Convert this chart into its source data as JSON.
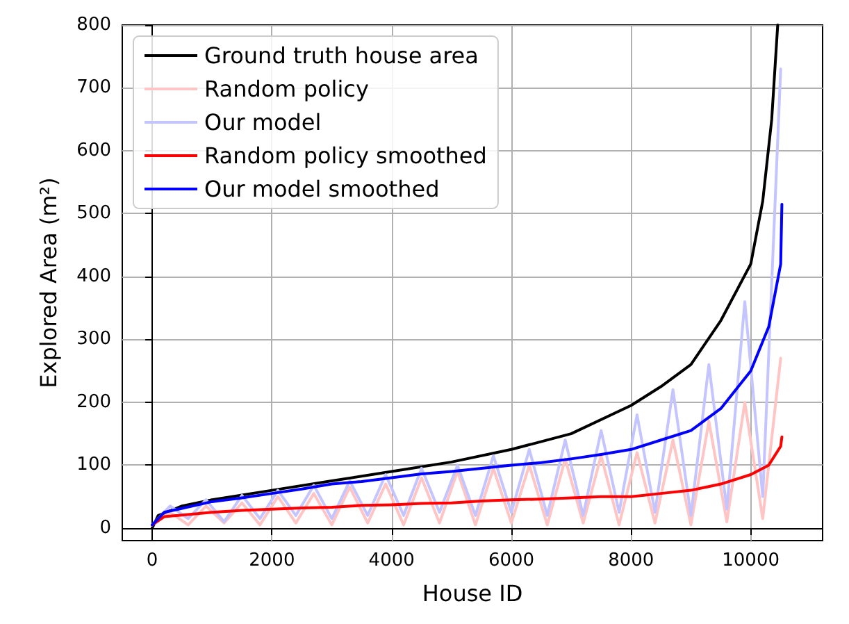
{
  "chart_data": {
    "type": "line",
    "xlabel": "House ID",
    "ylabel": "Explored Area (m²)",
    "xlim": [
      -500,
      11200
    ],
    "ylim": [
      -20,
      800
    ],
    "xticks": [
      0,
      2000,
      4000,
      6000,
      8000,
      10000
    ],
    "yticks": [
      0,
      100,
      200,
      300,
      400,
      500,
      600,
      700,
      800
    ],
    "grid": true,
    "legend": "top left",
    "marker": "none",
    "line_style": "solid",
    "series": [
      {
        "name": "Ground truth house area",
        "color": "#000000",
        "x": [
          0,
          100,
          500,
          1000,
          2000,
          3000,
          4000,
          5000,
          6000,
          7000,
          8000,
          8500,
          9000,
          9500,
          10000,
          10200,
          10350,
          10450
        ],
        "values": [
          0,
          20,
          35,
          45,
          60,
          75,
          90,
          105,
          125,
          150,
          195,
          225,
          260,
          330,
          420,
          520,
          650,
          800
        ]
      },
      {
        "name": "Random policy",
        "color": "#ffc4c4",
        "x": [
          0,
          300,
          600,
          900,
          1200,
          1500,
          1800,
          2100,
          2400,
          2700,
          3000,
          3300,
          3600,
          3900,
          4200,
          4500,
          4800,
          5100,
          5400,
          5700,
          6000,
          6300,
          6600,
          6900,
          7200,
          7500,
          7800,
          8100,
          8400,
          8700,
          9000,
          9300,
          9600,
          9900,
          10200,
          10500
        ],
        "values": [
          5,
          25,
          5,
          35,
          8,
          40,
          5,
          50,
          8,
          55,
          5,
          65,
          8,
          70,
          5,
          80,
          8,
          90,
          5,
          95,
          8,
          100,
          5,
          110,
          8,
          115,
          5,
          120,
          8,
          140,
          5,
          170,
          10,
          200,
          15,
          270
        ]
      },
      {
        "name": "Our model",
        "color": "#c4c4ff",
        "x": [
          0,
          300,
          600,
          900,
          1200,
          1500,
          1800,
          2100,
          2400,
          2700,
          3000,
          3300,
          3600,
          3900,
          4200,
          4500,
          4800,
          5100,
          5400,
          5700,
          6000,
          6300,
          6600,
          6900,
          7200,
          7500,
          7800,
          8100,
          8400,
          8700,
          9000,
          9300,
          9600,
          9900,
          10200,
          10500
        ],
        "values": [
          5,
          35,
          15,
          45,
          10,
          52,
          15,
          60,
          20,
          68,
          15,
          75,
          20,
          85,
          20,
          95,
          25,
          100,
          20,
          115,
          25,
          125,
          20,
          140,
          20,
          155,
          25,
          180,
          25,
          220,
          20,
          260,
          30,
          360,
          50,
          730
        ]
      },
      {
        "name": "Random policy smoothed",
        "color": "#ff0000",
        "x": [
          0,
          200,
          1000,
          1500,
          2000,
          2500,
          3000,
          3500,
          4000,
          4500,
          5000,
          5500,
          6000,
          6500,
          7000,
          7500,
          8000,
          8500,
          9000,
          9500,
          10000,
          10300,
          10500,
          10520
        ],
        "values": [
          5,
          18,
          25,
          28,
          30,
          32,
          33,
          36,
          37,
          39,
          40,
          43,
          45,
          46,
          48,
          50,
          50,
          55,
          60,
          70,
          85,
          100,
          130,
          145
        ]
      },
      {
        "name": "Our model smoothed",
        "color": "#0000ff",
        "x": [
          0,
          200,
          1000,
          1500,
          2000,
          2500,
          3000,
          3500,
          4000,
          4500,
          5000,
          5500,
          6000,
          6500,
          7000,
          7500,
          8000,
          8500,
          9000,
          9500,
          10000,
          10300,
          10500,
          10520
        ],
        "values": [
          5,
          25,
          42,
          48,
          55,
          62,
          70,
          74,
          80,
          86,
          90,
          95,
          100,
          104,
          110,
          117,
          125,
          140,
          155,
          190,
          250,
          320,
          420,
          515
        ]
      }
    ]
  }
}
